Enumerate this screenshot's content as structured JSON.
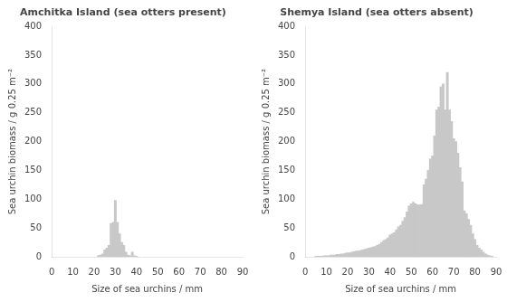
{
  "chart_data": [
    {
      "type": "bar",
      "title": "Amchitka Island (sea otters present)",
      "xlabel": "Size of sea urchins / mm",
      "ylabel": "Sea urchin biomass / g 0.25 m⁻²",
      "x": [
        22,
        23,
        24,
        25,
        26,
        27,
        28,
        29,
        30,
        31,
        32,
        33,
        34,
        35,
        36,
        37,
        38,
        39,
        40
      ],
      "values": [
        2,
        3,
        5,
        12,
        15,
        20,
        58,
        60,
        98,
        60,
        40,
        25,
        20,
        8,
        3,
        2,
        8,
        2,
        1
      ],
      "color": "#c8c8c8",
      "xlim": [
        0,
        90
      ],
      "xticks": [
        0,
        10,
        20,
        30,
        40,
        50,
        60,
        70,
        80,
        90
      ],
      "ylim": [
        0,
        400
      ],
      "yticks": [
        0,
        50,
        100,
        150,
        200,
        250,
        300,
        350,
        400
      ],
      "grid": false
    },
    {
      "type": "bar",
      "title": "Shemya Island (sea otters absent)",
      "xlabel": "Size of sea urchins / mm",
      "ylabel": "Sea urchin biomass / g 0.25 m⁻²",
      "x": [
        5,
        6,
        7,
        8,
        9,
        10,
        11,
        12,
        13,
        14,
        15,
        16,
        17,
        18,
        19,
        20,
        21,
        22,
        23,
        24,
        25,
        26,
        27,
        28,
        29,
        30,
        31,
        32,
        33,
        34,
        35,
        36,
        37,
        38,
        39,
        40,
        41,
        42,
        43,
        44,
        45,
        46,
        47,
        48,
        49,
        50,
        51,
        52,
        53,
        54,
        55,
        56,
        57,
        58,
        59,
        60,
        61,
        62,
        63,
        64,
        65,
        66,
        67,
        68,
        69,
        70,
        71,
        72,
        73,
        74,
        75,
        76,
        77,
        78,
        79,
        80,
        81,
        82,
        83,
        84,
        85,
        86,
        87,
        88
      ],
      "values": [
        1,
        1,
        1,
        1,
        2,
        2,
        2,
        3,
        3,
        3,
        4,
        4,
        5,
        5,
        6,
        7,
        7,
        8,
        9,
        10,
        10,
        11,
        12,
        13,
        14,
        15,
        16,
        17,
        18,
        20,
        22,
        25,
        28,
        30,
        33,
        38,
        40,
        42,
        47,
        52,
        55,
        62,
        68,
        78,
        88,
        92,
        95,
        92,
        90,
        90,
        91,
        125,
        135,
        150,
        170,
        175,
        210,
        255,
        260,
        295,
        300,
        255,
        320,
        255,
        235,
        205,
        200,
        180,
        155,
        130,
        80,
        75,
        65,
        55,
        40,
        30,
        20,
        15,
        12,
        8,
        5,
        3,
        2,
        1
      ],
      "color": "#c8c8c8",
      "xlim": [
        0,
        90
      ],
      "xticks": [
        0,
        10,
        20,
        30,
        40,
        50,
        60,
        70,
        80,
        90
      ],
      "ylim": [
        0,
        400
      ],
      "yticks": [
        0,
        50,
        100,
        150,
        200,
        250,
        300,
        350,
        400
      ],
      "grid": false
    }
  ]
}
